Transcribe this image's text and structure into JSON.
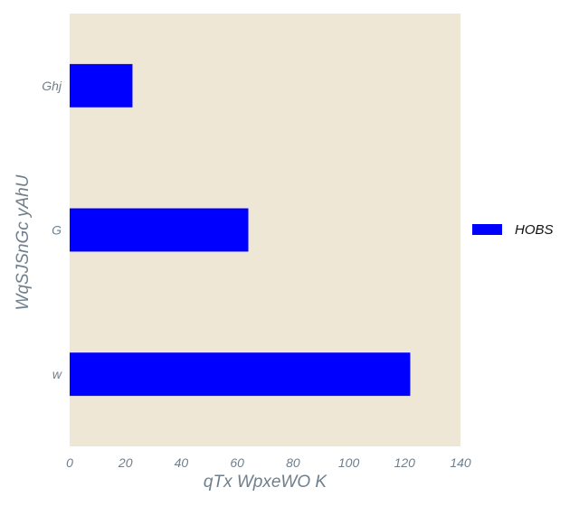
{
  "chart_data": {
    "type": "bar",
    "orientation": "horizontal",
    "categories": [
      "Ghj",
      "G",
      "w"
    ],
    "series": [
      {
        "name": "HOBS",
        "values": [
          22.5,
          64,
          122
        ]
      }
    ],
    "xlabel": "qTx WpxeWO K",
    "ylabel": "WqSJSnGc yAhU",
    "xlim": [
      0,
      140
    ],
    "xticks": [
      0,
      20,
      40,
      60,
      80,
      100,
      120,
      140
    ],
    "grid": false,
    "legend": "right",
    "colors": {
      "bar": "#0000ff",
      "plot_background": "#efe7d5",
      "text": "#6f7f8c"
    }
  }
}
